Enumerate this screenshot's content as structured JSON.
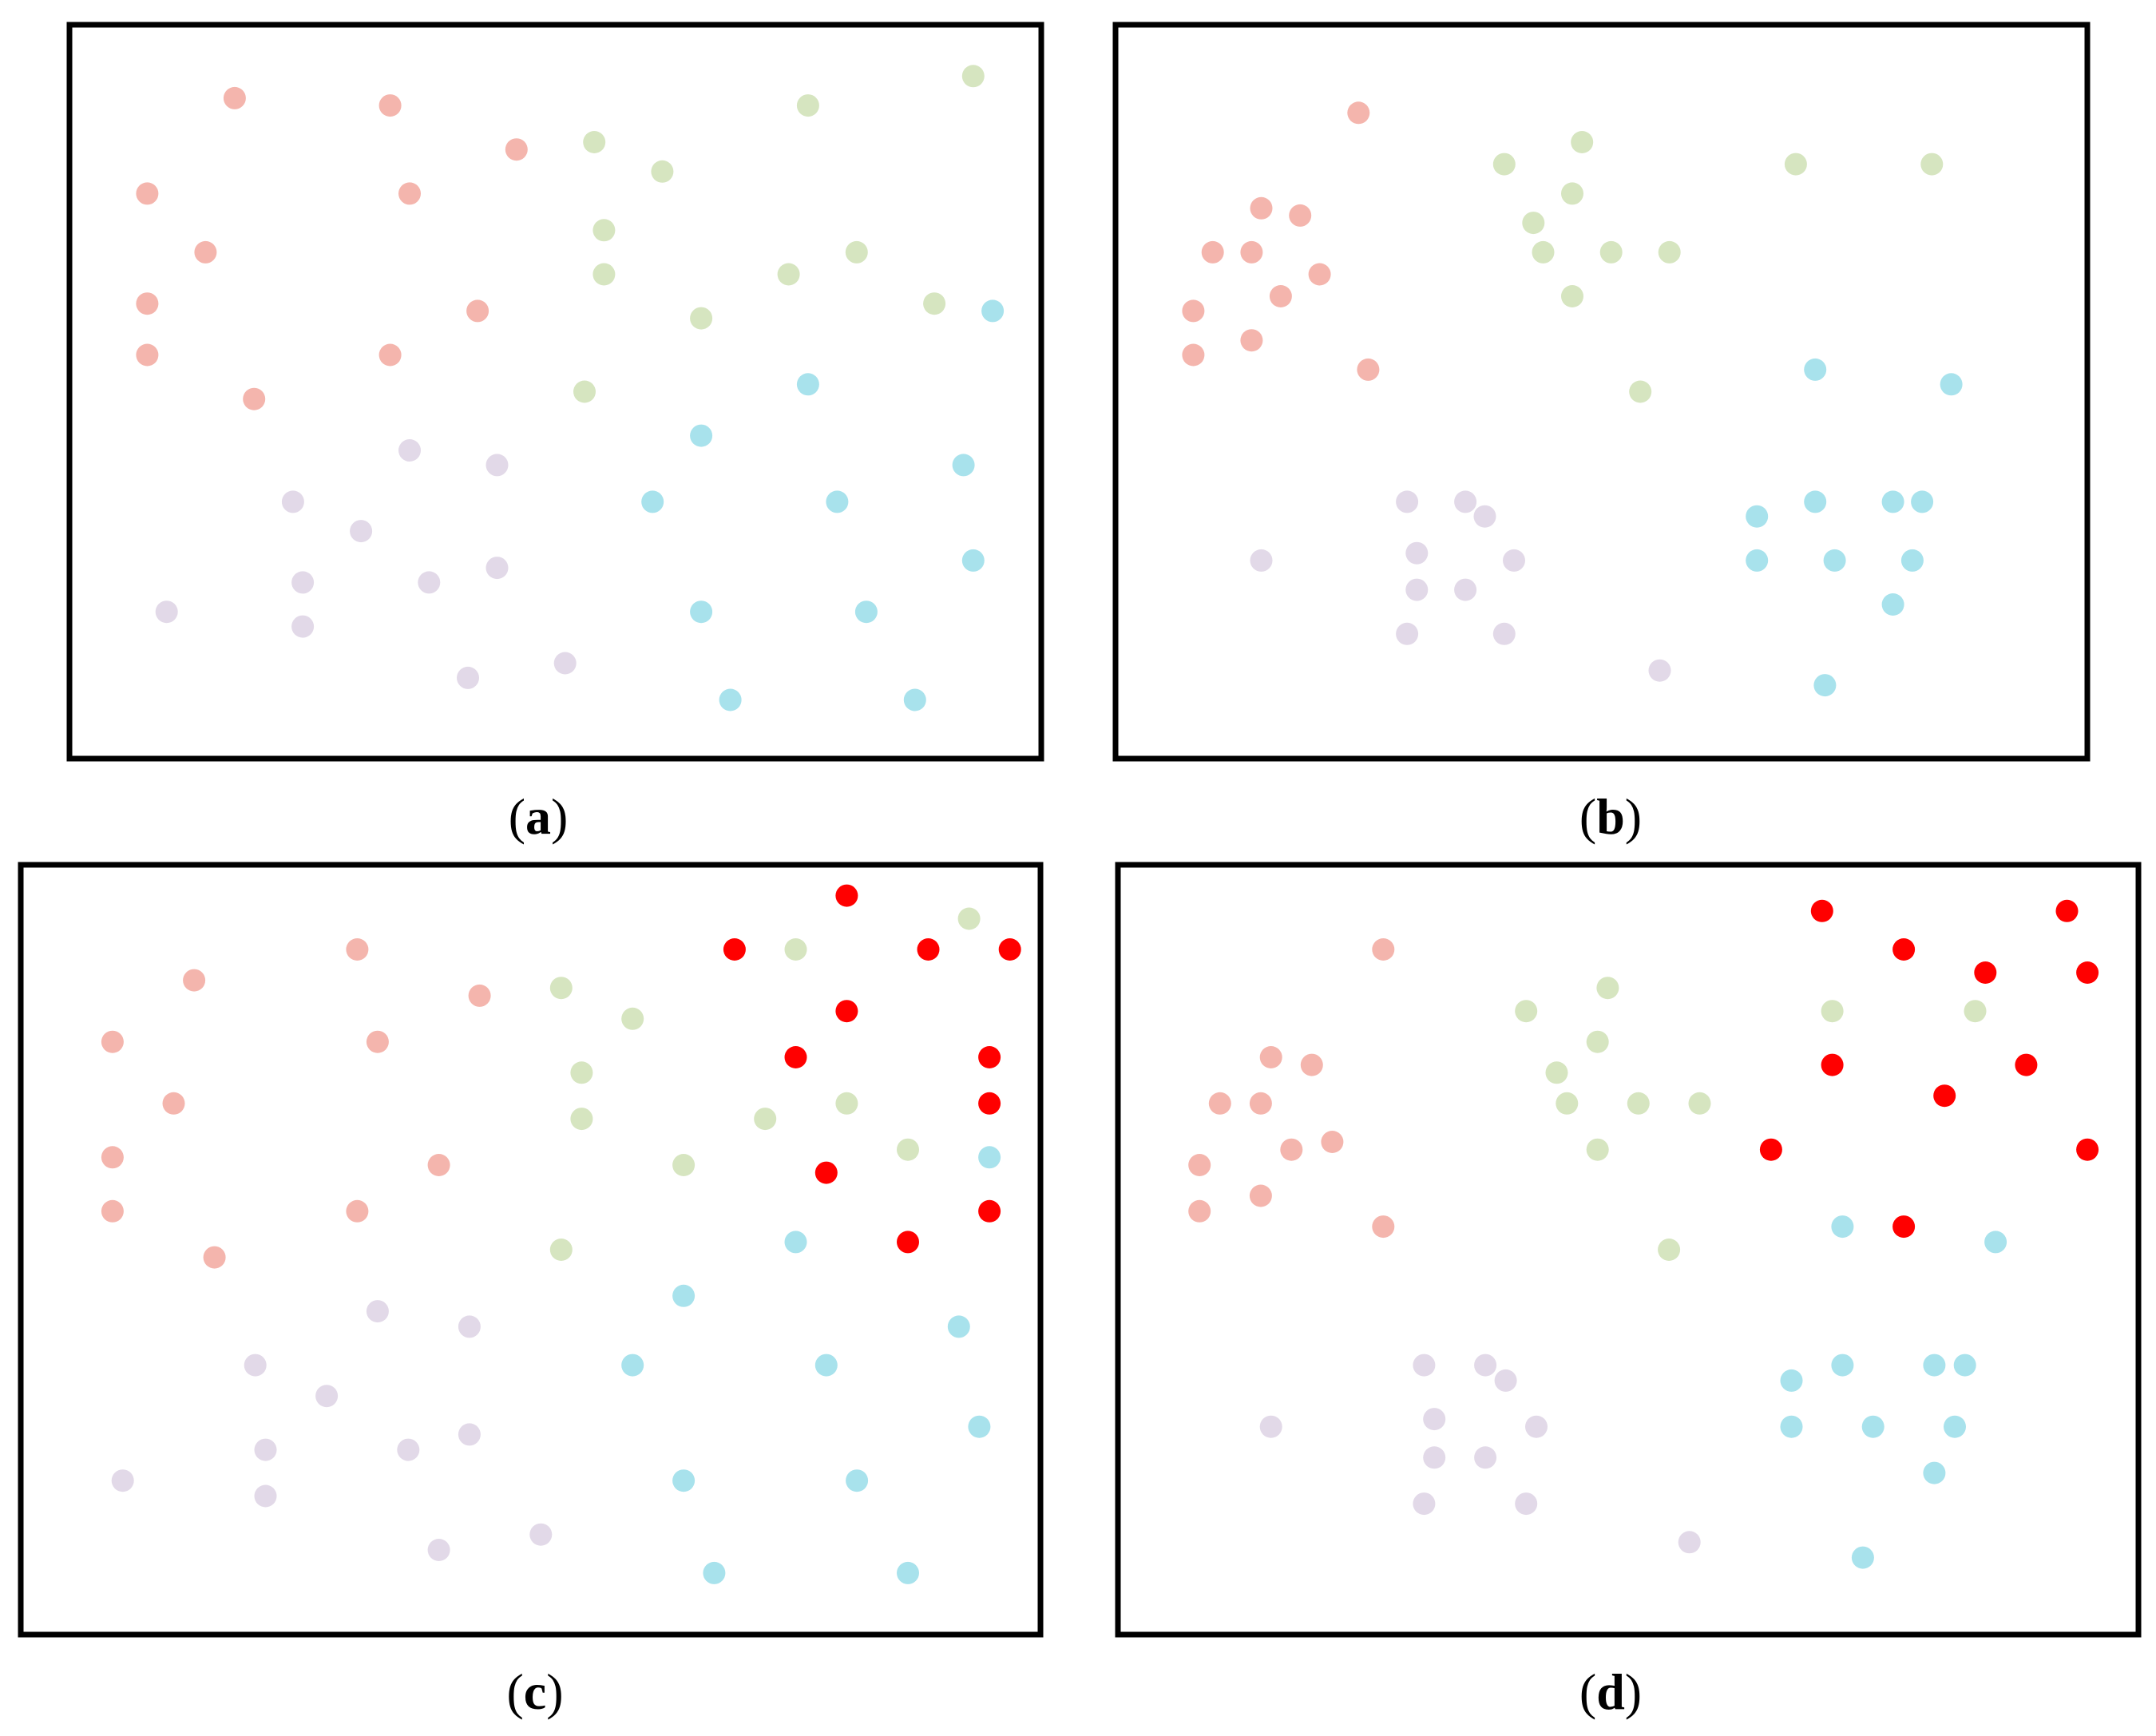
{
  "colors": {
    "red": "#f4b5ad",
    "green": "#d6e5c0",
    "purple": "#e2d9e8",
    "cyan": "#a8e2ec",
    "highlight": "#ff0000",
    "frame": "#000000"
  },
  "chart_data": [
    {
      "type": "scatter",
      "label": "a",
      "xlim": [
        0,
        100
      ],
      "ylim": [
        0,
        100
      ],
      "grid": false,
      "axes_visible": false,
      "series": [
        {
          "color_key": "red",
          "points": [
            [
              17,
              90
            ],
            [
              33,
              89
            ],
            [
              46,
              83
            ],
            [
              8,
              77
            ],
            [
              35,
              77
            ],
            [
              14,
              69
            ],
            [
              42,
              61
            ],
            [
              8,
              62
            ],
            [
              33,
              55
            ],
            [
              8,
              55
            ],
            [
              19,
              49
            ]
          ]
        },
        {
          "color_key": "green",
          "points": [
            [
              54,
              84
            ],
            [
              61,
              80
            ],
            [
              76,
              89
            ],
            [
              93,
              93
            ],
            [
              55,
              72
            ],
            [
              81,
              69
            ],
            [
              55,
              66
            ],
            [
              74,
              66
            ],
            [
              89,
              62
            ],
            [
              65,
              60
            ],
            [
              53,
              50
            ]
          ]
        },
        {
          "color_key": "purple",
          "points": [
            [
              35,
              42
            ],
            [
              44,
              40
            ],
            [
              23,
              35
            ],
            [
              30,
              31
            ],
            [
              24,
              24
            ],
            [
              37,
              24
            ],
            [
              44,
              26
            ],
            [
              10,
              20
            ],
            [
              24,
              18
            ],
            [
              41,
              11
            ],
            [
              51,
              13
            ]
          ]
        },
        {
          "color_key": "cyan",
          "points": [
            [
              95,
              61
            ],
            [
              76,
              51
            ],
            [
              65,
              44
            ],
            [
              92,
              40
            ],
            [
              60,
              35
            ],
            [
              79,
              35
            ],
            [
              93,
              27
            ],
            [
              65,
              20
            ],
            [
              82,
              20
            ],
            [
              68,
              8
            ],
            [
              87,
              8
            ]
          ]
        }
      ]
    },
    {
      "type": "scatter",
      "label": "b",
      "xlim": [
        0,
        100
      ],
      "ylim": [
        0,
        100
      ],
      "grid": false,
      "axes_visible": false,
      "series": [
        {
          "color_key": "red",
          "points": [
            [
              25,
              88
            ],
            [
              15,
              75
            ],
            [
              19,
              74
            ],
            [
              10,
              69
            ],
            [
              14,
              69
            ],
            [
              21,
              66
            ],
            [
              17,
              63
            ],
            [
              8,
              61
            ],
            [
              14,
              57
            ],
            [
              8,
              55
            ],
            [
              26,
              53
            ]
          ]
        },
        {
          "color_key": "green",
          "points": [
            [
              48,
              84
            ],
            [
              40,
              81
            ],
            [
              47,
              77
            ],
            [
              43,
              73
            ],
            [
              44,
              69
            ],
            [
              51,
              69
            ],
            [
              57,
              69
            ],
            [
              70,
              81
            ],
            [
              84,
              81
            ],
            [
              47,
              63
            ],
            [
              54,
              50
            ]
          ]
        },
        {
          "color_key": "purple",
          "points": [
            [
              30,
              35
            ],
            [
              36,
              35
            ],
            [
              38,
              33
            ],
            [
              31,
              28
            ],
            [
              15,
              27
            ],
            [
              41,
              27
            ],
            [
              31,
              23
            ],
            [
              36,
              23
            ],
            [
              30,
              17
            ],
            [
              40,
              17
            ],
            [
              56,
              12
            ]
          ]
        },
        {
          "color_key": "cyan",
          "points": [
            [
              72,
              53
            ],
            [
              86,
              51
            ],
            [
              66,
              33
            ],
            [
              72,
              35
            ],
            [
              80,
              35
            ],
            [
              83,
              35
            ],
            [
              66,
              27
            ],
            [
              74,
              27
            ],
            [
              82,
              27
            ],
            [
              80,
              21
            ],
            [
              73,
              10
            ]
          ]
        }
      ]
    },
    {
      "type": "scatter",
      "label": "c",
      "xlim": [
        0,
        100
      ],
      "ylim": [
        0,
        100
      ],
      "grid": false,
      "axes_visible": false,
      "series": [
        {
          "color_key": "red",
          "points": [
            [
              17,
              85
            ],
            [
              33,
              89
            ],
            [
              45,
              83
            ],
            [
              9,
              77
            ],
            [
              35,
              77
            ],
            [
              15,
              69
            ],
            [
              41,
              61
            ],
            [
              9,
              62
            ],
            [
              33,
              55
            ],
            [
              9,
              55
            ],
            [
              19,
              49
            ]
          ]
        },
        {
          "color_key": "green",
          "points": [
            [
              53,
              84
            ],
            [
              60,
              80
            ],
            [
              76,
              89
            ],
            [
              93,
              93
            ],
            [
              55,
              73
            ],
            [
              81,
              69
            ],
            [
              55,
              67
            ],
            [
              73,
              67
            ],
            [
              87,
              63
            ],
            [
              65,
              61
            ],
            [
              53,
              50
            ]
          ]
        },
        {
          "color_key": "purple",
          "points": [
            [
              35,
              42
            ],
            [
              44,
              40
            ],
            [
              23,
              35
            ],
            [
              30,
              31
            ],
            [
              24,
              24
            ],
            [
              38,
              24
            ],
            [
              44,
              26
            ],
            [
              10,
              20
            ],
            [
              24,
              18
            ],
            [
              41,
              11
            ],
            [
              51,
              13
            ]
          ]
        },
        {
          "color_key": "cyan",
          "points": [
            [
              95,
              62
            ],
            [
              76,
              51
            ],
            [
              65,
              44
            ],
            [
              92,
              40
            ],
            [
              60,
              35
            ],
            [
              79,
              35
            ],
            [
              94,
              27
            ],
            [
              65,
              20
            ],
            [
              82,
              20
            ],
            [
              68,
              8
            ],
            [
              87,
              8
            ]
          ]
        },
        {
          "color_key": "highlight",
          "points": [
            [
              81,
              96
            ],
            [
              70,
              89
            ],
            [
              89,
              89
            ],
            [
              97,
              89
            ],
            [
              81,
              81
            ],
            [
              76,
              75
            ],
            [
              95,
              75
            ],
            [
              95,
              69
            ],
            [
              79,
              60
            ],
            [
              95,
              55
            ],
            [
              87,
              51
            ]
          ]
        }
      ]
    },
    {
      "type": "scatter",
      "label": "d",
      "xlim": [
        0,
        100
      ],
      "ylim": [
        0,
        100
      ],
      "grid": false,
      "axes_visible": false,
      "series": [
        {
          "color_key": "red",
          "points": [
            [
              26,
              89
            ],
            [
              15,
              75
            ],
            [
              19,
              74
            ],
            [
              10,
              69
            ],
            [
              14,
              69
            ],
            [
              21,
              64
            ],
            [
              17,
              63
            ],
            [
              8,
              61
            ],
            [
              14,
              57
            ],
            [
              8,
              55
            ],
            [
              26,
              53
            ]
          ]
        },
        {
          "color_key": "green",
          "points": [
            [
              48,
              84
            ],
            [
              40,
              81
            ],
            [
              47,
              77
            ],
            [
              43,
              73
            ],
            [
              44,
              69
            ],
            [
              51,
              69
            ],
            [
              57,
              69
            ],
            [
              70,
              81
            ],
            [
              84,
              81
            ],
            [
              47,
              63
            ],
            [
              54,
              50
            ]
          ]
        },
        {
          "color_key": "purple",
          "points": [
            [
              30,
              35
            ],
            [
              36,
              35
            ],
            [
              38,
              33
            ],
            [
              31,
              28
            ],
            [
              15,
              27
            ],
            [
              41,
              27
            ],
            [
              31,
              23
            ],
            [
              36,
              23
            ],
            [
              30,
              17
            ],
            [
              40,
              17
            ],
            [
              56,
              12
            ]
          ]
        },
        {
          "color_key": "cyan",
          "points": [
            [
              71,
              53
            ],
            [
              86,
              51
            ],
            [
              66,
              33
            ],
            [
              71,
              35
            ],
            [
              80,
              35
            ],
            [
              83,
              35
            ],
            [
              66,
              27
            ],
            [
              74,
              27
            ],
            [
              82,
              27
            ],
            [
              80,
              21
            ],
            [
              73,
              10
            ]
          ]
        },
        {
          "color_key": "highlight",
          "points": [
            [
              69,
              94
            ],
            [
              77,
              89
            ],
            [
              93,
              94
            ],
            [
              85,
              86
            ],
            [
              95,
              86
            ],
            [
              70,
              74
            ],
            [
              81,
              70
            ],
            [
              89,
              74
            ],
            [
              64,
              63
            ],
            [
              95,
              63
            ],
            [
              77,
              53
            ]
          ]
        }
      ]
    }
  ]
}
